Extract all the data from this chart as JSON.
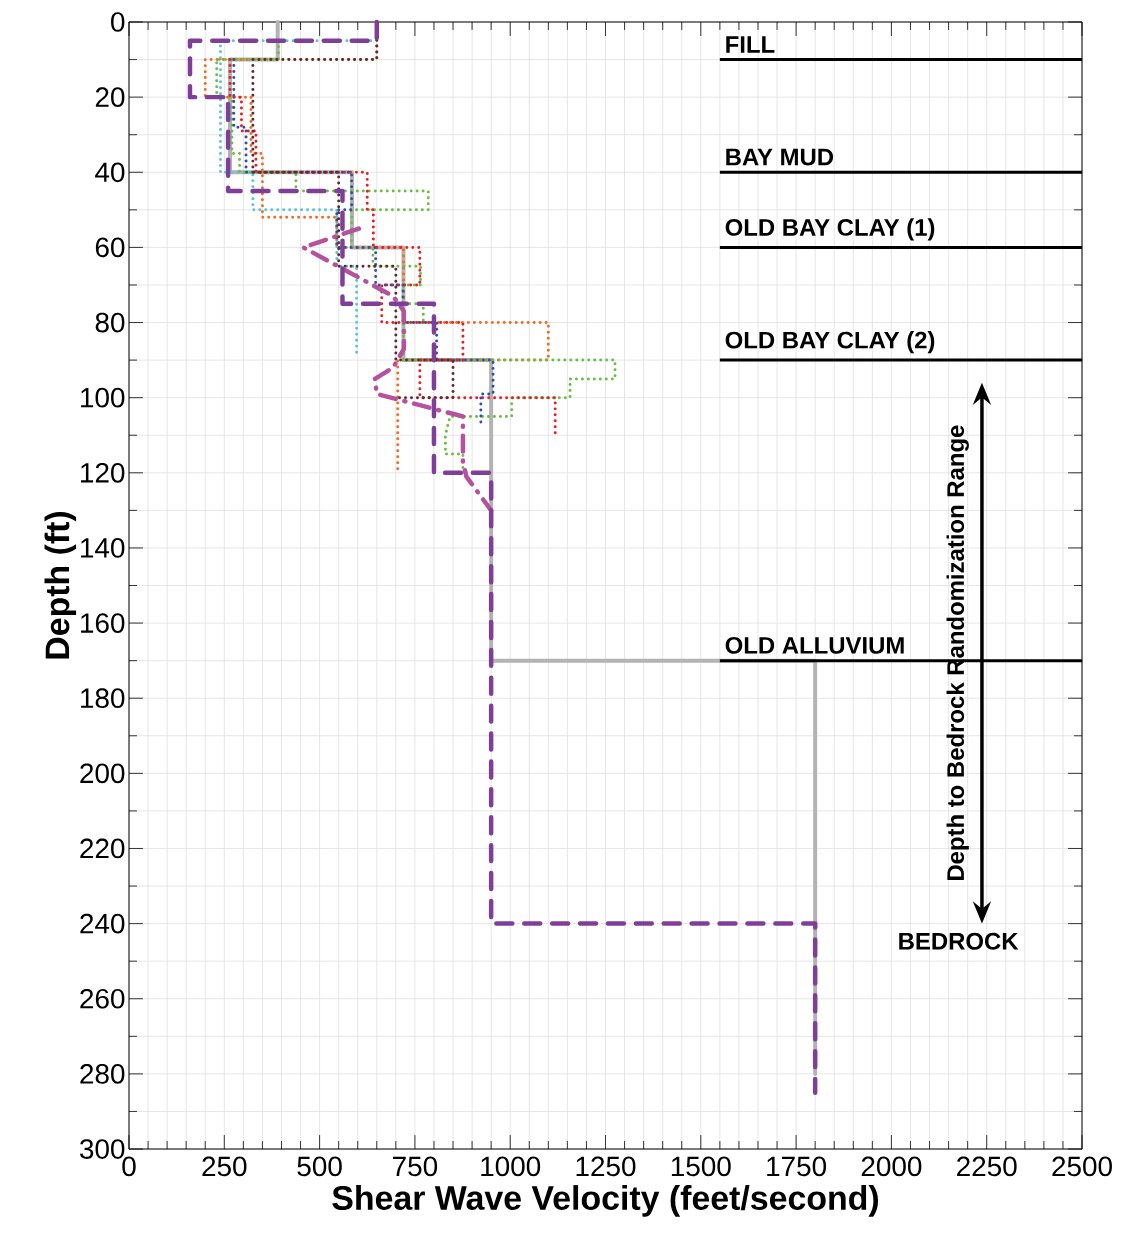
{
  "chart_data": {
    "type": "line",
    "xlabel": "Shear Wave Velocity (feet/second)",
    "ylabel": "Depth (ft)",
    "xlim": [
      0,
      2500
    ],
    "ylim": [
      300,
      0
    ],
    "xticks": [
      0,
      250,
      500,
      750,
      1000,
      1250,
      1500,
      1750,
      2000,
      2250,
      2500
    ],
    "yticks": [
      0,
      20,
      40,
      60,
      80,
      100,
      120,
      140,
      160,
      180,
      200,
      220,
      240,
      260,
      280,
      300
    ],
    "grid": true,
    "marker": "none",
    "series": [
      {
        "color": "#b3b3b3",
        "line_style": "solid",
        "x": [
          390,
          390,
          265,
          265,
          585,
          585,
          720,
          720,
          950,
          950,
          1800,
          1800
        ],
        "values": [
          0,
          10,
          10,
          40,
          40,
          60,
          60,
          90,
          90,
          170,
          170,
          280
        ]
      },
      {
        "color": "#5bc5d8",
        "line_style": "dotted",
        "x": [
          650,
          240,
          240,
          325,
          325,
          545,
          545,
          597,
          597
        ],
        "values": [
          5,
          5,
          40,
          40,
          50,
          50,
          65,
          65,
          89
        ]
      },
      {
        "color": "#f26b21",
        "line_style": "dotted",
        "x": [
          650,
          650,
          200,
          200,
          320,
          320,
          350,
          350,
          545,
          545,
          720,
          720,
          1100,
          1100,
          705,
          705
        ],
        "values": [
          0,
          10,
          10,
          20,
          20,
          35,
          35,
          52,
          52,
          60,
          60,
          80,
          80,
          90,
          90,
          120
        ]
      },
      {
        "color": "#6abd45",
        "line_style": "dotted",
        "x": [
          392,
          392,
          230,
          230,
          270,
          270,
          290,
          290,
          438,
          438,
          785,
          785,
          584,
          584,
          640,
          640,
          765,
          765,
          720,
          720,
          772,
          772,
          720,
          720,
          1275,
          1275,
          1157,
          1157,
          1004,
          1004,
          842,
          830,
          830,
          876,
          876
        ],
        "values": [
          5,
          10,
          10,
          20,
          20,
          35,
          35,
          40,
          40,
          45,
          45,
          50,
          50,
          60,
          60,
          65,
          65,
          70,
          70,
          75,
          75,
          80,
          80,
          90,
          90,
          95,
          95,
          100,
          100,
          105,
          105,
          110,
          115,
          115,
          120
        ]
      },
      {
        "color": "#ed1c24",
        "line_style": "dotted",
        "x": [
          265,
          265,
          295,
          295,
          333,
          333,
          625,
          625,
          641,
          641,
          763,
          763,
          663,
          663,
          876,
          876,
          763,
          763,
          1118,
          1118
        ],
        "values": [
          10,
          20,
          20,
          29,
          29,
          40,
          40,
          50,
          50,
          60,
          60,
          70,
          70,
          80,
          80,
          90,
          90,
          100,
          100,
          110
        ]
      },
      {
        "color": "#2e4fa3",
        "line_style": "dotted",
        "x": [
          275,
          275,
          307,
          307,
          584,
          584,
          545,
          545,
          647,
          647,
          719,
          719,
          807,
          807,
          955,
          955,
          923,
          923
        ],
        "values": [
          10,
          28,
          28,
          40,
          40,
          50,
          50,
          60,
          60,
          70,
          70,
          80,
          80,
          90,
          90,
          99,
          99,
          108
        ]
      },
      {
        "color": "#5b2c2a",
        "line_style": "dotted",
        "x": [
          650,
          650,
          325,
          325,
          550,
          550,
          700,
          700,
          850,
          850,
          700
        ],
        "values": [
          0,
          10,
          10,
          40,
          40,
          65,
          65,
          90,
          90,
          100,
          100
        ]
      },
      {
        "color": "#b5519e",
        "line_style": "dashdot",
        "x": [
          603,
          457,
          693,
          721,
          721,
          693,
          645,
          650,
          876,
          876,
          885,
          950
        ],
        "values": [
          55,
          60,
          73,
          77,
          87,
          92,
          95,
          99,
          105,
          117,
          121,
          130
        ]
      },
      {
        "color": "#7f3f98",
        "line_style": "dashed",
        "x": [
          650,
          650,
          160,
          160,
          260,
          260,
          560,
          560,
          800,
          800,
          950,
          950,
          1800,
          1800
        ],
        "values": [
          0,
          5,
          5,
          20,
          20,
          45,
          45,
          75,
          75,
          120,
          120,
          240,
          240,
          285
        ]
      }
    ],
    "ref_lines": [
      {
        "axis": "y",
        "value": 10,
        "label": "FILL",
        "color": "#000000"
      },
      {
        "axis": "y",
        "value": 40,
        "label": "BAY MUD",
        "color": "#000000"
      },
      {
        "axis": "y",
        "value": 60,
        "label": "OLD BAY CLAY (1)",
        "color": "#000000"
      },
      {
        "axis": "y",
        "value": 90,
        "label": "OLD BAY CLAY (2)",
        "color": "#000000"
      },
      {
        "axis": "y",
        "value": 170,
        "label": "OLD ALLUVIUM",
        "color": "#000000"
      }
    ],
    "annotations": [
      "Depth to Bedrock Randomization Range",
      "BEDROCK"
    ]
  }
}
